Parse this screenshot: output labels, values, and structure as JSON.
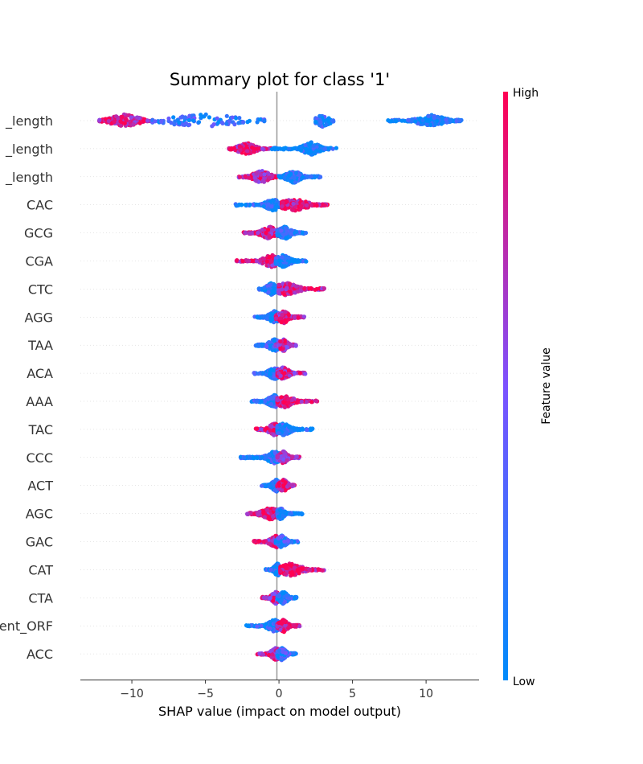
{
  "chart_data": {
    "type": "scatter",
    "title": "Summary plot for class '1'",
    "xlabel": "SHAP value (impact on model output)",
    "xlim": [
      -13.5,
      13.6
    ],
    "xticks": [
      -10,
      -5,
      0,
      5,
      10
    ],
    "tick_labels": [
      "−10",
      "−5",
      "0",
      "5",
      "10"
    ],
    "grid": false,
    "features": [
      {
        "name": "_length",
        "min": -12.2,
        "max": 12.4,
        "segments": [
          {
            "from": -12.2,
            "to": -8.6,
            "center": -10.5,
            "spread": 1.0,
            "lean": 0.85,
            "weight": 0.5
          },
          {
            "from": -8.6,
            "to": -1.0,
            "center": -5,
            "spread": 2.8,
            "lean": 0.2,
            "weight": 0.25
          },
          {
            "from": 2.5,
            "to": 3.7,
            "center": 3.0,
            "spread": 0.5,
            "lean": 0.1,
            "weight": 0.03
          },
          {
            "from": 7.4,
            "to": 12.4,
            "center": 10.3,
            "spread": 0.9,
            "lean": 0.05,
            "weight": 0.6
          }
        ]
      },
      {
        "name": "_length",
        "min": -3.4,
        "max": 3.9,
        "segments": [
          {
            "from": -3.4,
            "to": -0.5,
            "center": -2.2,
            "spread": 0.6,
            "lean": 0.85,
            "weight": 0.45
          },
          {
            "from": -0.5,
            "to": 3.9,
            "center": 2.2,
            "spread": 0.6,
            "lean": 0.05,
            "weight": 0.55
          }
        ]
      },
      {
        "name": "_length",
        "min": -2.8,
        "max": 2.9,
        "segments": [
          {
            "from": -2.8,
            "to": 0.3,
            "center": -1.2,
            "spread": 0.6,
            "lean": 0.8,
            "weight": 0.45
          },
          {
            "from": 0.0,
            "to": 2.9,
            "center": 1.0,
            "spread": 0.5,
            "lean": 0.1,
            "weight": 0.55
          }
        ]
      },
      {
        "name": "CAC",
        "min": -3.0,
        "max": 3.3,
        "segments": [
          {
            "from": -3.0,
            "to": 0.5,
            "center": -0.4,
            "spread": 0.5,
            "lean": 0.1,
            "weight": 0.5
          },
          {
            "from": 0.2,
            "to": 3.3,
            "center": 1.0,
            "spread": 0.9,
            "lean": 0.9,
            "weight": 0.5
          }
        ]
      },
      {
        "name": "GCG",
        "min": -2.4,
        "max": 1.9,
        "segments": [
          {
            "from": -2.4,
            "to": 0.3,
            "center": -0.6,
            "spread": 0.6,
            "lean": 0.85,
            "weight": 0.5
          },
          {
            "from": -0.1,
            "to": 1.9,
            "center": 0.4,
            "spread": 0.5,
            "lean": 0.1,
            "weight": 0.5
          }
        ]
      },
      {
        "name": "CGA",
        "min": -2.9,
        "max": 2.0,
        "segments": [
          {
            "from": -2.9,
            "to": 0.3,
            "center": -0.5,
            "spread": 0.6,
            "lean": 0.85,
            "weight": 0.5
          },
          {
            "from": -0.2,
            "to": 2.0,
            "center": 0.3,
            "spread": 0.5,
            "lean": 0.1,
            "weight": 0.5
          }
        ]
      },
      {
        "name": "CTC",
        "min": -1.4,
        "max": 3.1,
        "segments": [
          {
            "from": -1.4,
            "to": 0.3,
            "center": -0.5,
            "spread": 0.35,
            "lean": 0.1,
            "weight": 0.45
          },
          {
            "from": 0.0,
            "to": 3.1,
            "center": 0.5,
            "spread": 0.8,
            "lean": 0.85,
            "weight": 0.55
          }
        ]
      },
      {
        "name": "AGG",
        "min": -1.7,
        "max": 1.8,
        "segments": [
          {
            "from": -1.7,
            "to": 0.3,
            "center": -0.3,
            "spread": 0.4,
            "lean": 0.15,
            "weight": 0.5
          },
          {
            "from": -0.2,
            "to": 1.8,
            "center": 0.3,
            "spread": 0.4,
            "lean": 0.8,
            "weight": 0.5
          }
        ]
      },
      {
        "name": "TAA",
        "min": -1.6,
        "max": 1.2,
        "segments": [
          {
            "from": -1.6,
            "to": 0.4,
            "center": -0.3,
            "spread": 0.4,
            "lean": 0.15,
            "weight": 0.5
          },
          {
            "from": -0.2,
            "to": 1.2,
            "center": 0.3,
            "spread": 0.3,
            "lean": 0.75,
            "weight": 0.5
          }
        ]
      },
      {
        "name": "ACA",
        "min": -1.7,
        "max": 1.8,
        "segments": [
          {
            "from": -1.7,
            "to": 0.3,
            "center": -0.3,
            "spread": 0.4,
            "lean": 0.15,
            "weight": 0.5
          },
          {
            "from": -0.1,
            "to": 1.8,
            "center": 0.3,
            "spread": 0.4,
            "lean": 0.8,
            "weight": 0.5
          }
        ]
      },
      {
        "name": "AAA",
        "min": -1.9,
        "max": 2.7,
        "segments": [
          {
            "from": -1.9,
            "to": 0.3,
            "center": -0.3,
            "spread": 0.45,
            "lean": 0.15,
            "weight": 0.5
          },
          {
            "from": -0.1,
            "to": 2.7,
            "center": 0.4,
            "spread": 0.6,
            "lean": 0.85,
            "weight": 0.5
          }
        ]
      },
      {
        "name": "TAC",
        "min": -1.6,
        "max": 2.3,
        "segments": [
          {
            "from": -1.6,
            "to": 0.2,
            "center": -0.3,
            "spread": 0.4,
            "lean": 0.85,
            "weight": 0.5
          },
          {
            "from": -0.1,
            "to": 2.3,
            "center": 0.3,
            "spread": 0.5,
            "lean": 0.1,
            "weight": 0.5
          }
        ]
      },
      {
        "name": "CCC",
        "min": -2.7,
        "max": 1.4,
        "segments": [
          {
            "from": -2.7,
            "to": 0.3,
            "center": -0.3,
            "spread": 0.5,
            "lean": 0.15,
            "weight": 0.5
          },
          {
            "from": -0.1,
            "to": 1.4,
            "center": 0.3,
            "spread": 0.3,
            "lean": 0.7,
            "weight": 0.5
          }
        ]
      },
      {
        "name": "ACT",
        "min": -1.2,
        "max": 1.1,
        "segments": [
          {
            "from": -1.2,
            "to": 0.3,
            "center": -0.2,
            "spread": 0.3,
            "lean": 0.15,
            "weight": 0.5
          },
          {
            "from": -0.1,
            "to": 1.1,
            "center": 0.3,
            "spread": 0.3,
            "lean": 0.85,
            "weight": 0.5
          }
        ]
      },
      {
        "name": "AGC",
        "min": -2.2,
        "max": 1.6,
        "segments": [
          {
            "from": -2.2,
            "to": 0.2,
            "center": -0.6,
            "spread": 0.6,
            "lean": 0.9,
            "weight": 0.5
          },
          {
            "from": -0.1,
            "to": 1.6,
            "center": 0.1,
            "spread": 0.25,
            "lean": 0.1,
            "weight": 0.5
          }
        ]
      },
      {
        "name": "GAC",
        "min": -1.7,
        "max": 1.3,
        "segments": [
          {
            "from": -1.7,
            "to": 0.3,
            "center": -0.2,
            "spread": 0.4,
            "lean": 0.8,
            "weight": 0.5
          },
          {
            "from": -0.2,
            "to": 1.3,
            "center": 0.2,
            "spread": 0.3,
            "lean": 0.2,
            "weight": 0.5
          }
        ]
      },
      {
        "name": "CAT",
        "min": -0.9,
        "max": 3.1,
        "segments": [
          {
            "from": -0.9,
            "to": 0.3,
            "center": -0.1,
            "spread": 0.25,
            "lean": 0.1,
            "weight": 0.5
          },
          {
            "from": 0.1,
            "to": 3.1,
            "center": 0.8,
            "spread": 0.8,
            "lean": 0.9,
            "weight": 0.5
          }
        ]
      },
      {
        "name": "CTA",
        "min": -1.2,
        "max": 1.2,
        "segments": [
          {
            "from": -1.2,
            "to": 0.3,
            "center": -0.2,
            "spread": 0.3,
            "lean": 0.8,
            "weight": 0.5
          },
          {
            "from": -0.1,
            "to": 1.2,
            "center": 0.3,
            "spread": 0.3,
            "lean": 0.1,
            "weight": 0.5
          }
        ]
      },
      {
        "name": "ent_ORF",
        "min": -2.3,
        "max": 1.5,
        "segments": [
          {
            "from": -2.3,
            "to": 0.2,
            "center": -0.3,
            "spread": 0.45,
            "lean": 0.1,
            "weight": 0.5
          },
          {
            "from": -0.1,
            "to": 1.5,
            "center": 0.3,
            "spread": 0.35,
            "lean": 0.85,
            "weight": 0.5
          }
        ]
      },
      {
        "name": "ACC",
        "min": -1.5,
        "max": 1.2,
        "segments": [
          {
            "from": -1.5,
            "to": 0.3,
            "center": -0.2,
            "spread": 0.35,
            "lean": 0.8,
            "weight": 0.5
          },
          {
            "from": -0.1,
            "to": 1.2,
            "center": 0.2,
            "spread": 0.3,
            "lean": 0.2,
            "weight": 0.5
          }
        ]
      }
    ],
    "colorbar": {
      "label": "Feature value",
      "high": "High",
      "low": "Low",
      "low_color": "#008bfb",
      "mid_color": "#7c52ff",
      "high_color": "#ff0052"
    }
  }
}
